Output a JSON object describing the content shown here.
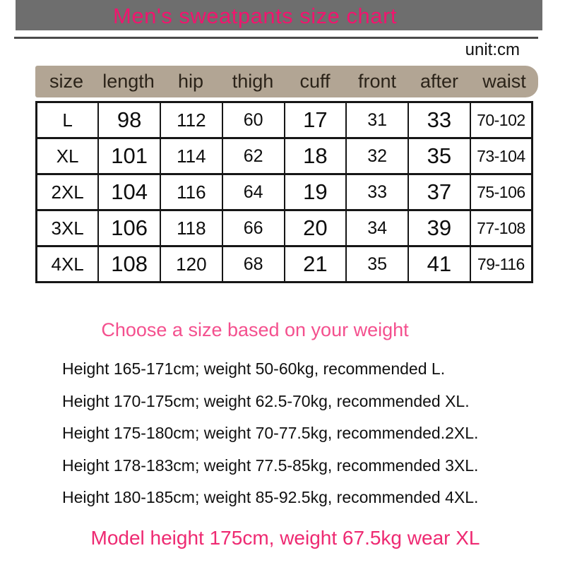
{
  "header": {
    "title": "Men's sweatpants size chart",
    "unit_label": "unit:cm"
  },
  "size_table": {
    "columns": [
      "size",
      "length",
      "hip",
      "thigh",
      "cuff",
      "front",
      "after",
      "waist"
    ],
    "rows": [
      [
        "L",
        "98",
        "112",
        "60",
        "17",
        "31",
        "33",
        "70-102"
      ],
      [
        "XL",
        "101",
        "114",
        "62",
        "18",
        "32",
        "35",
        "73-104"
      ],
      [
        "2XL",
        "104",
        "116",
        "64",
        "19",
        "33",
        "37",
        "75-106"
      ],
      [
        "3XL",
        "106",
        "118",
        "66",
        "20",
        "34",
        "39",
        "77-108"
      ],
      [
        "4XL",
        "108",
        "120",
        "68",
        "21",
        "35",
        "41",
        "79-116"
      ]
    ]
  },
  "sections": {
    "choose_heading": "Choose a size based on your weight",
    "model_note": "Model height 175cm, weight 67.5kg wear XL"
  },
  "recommendations": [
    "Height 165-171cm; weight 50-60kg, recommended L.",
    "Height 170-175cm; weight 62.5-70kg, recommended XL.",
    "Height 175-180cm; weight 70-77.5kg, recommended.2XL.",
    "Height 178-183cm; weight 77.5-85kg, recommended 3XL.",
    "Height 180-185cm; weight 85-92.5kg, recommended 4XL."
  ],
  "colors": {
    "title_bar_bg": "#6e6e6e",
    "title_text": "#f0156e",
    "table_header_bg": "#b2a594",
    "accent_pink": "#f4508e",
    "model_note_pink": "#ee2a72",
    "body_text": "#101010"
  }
}
